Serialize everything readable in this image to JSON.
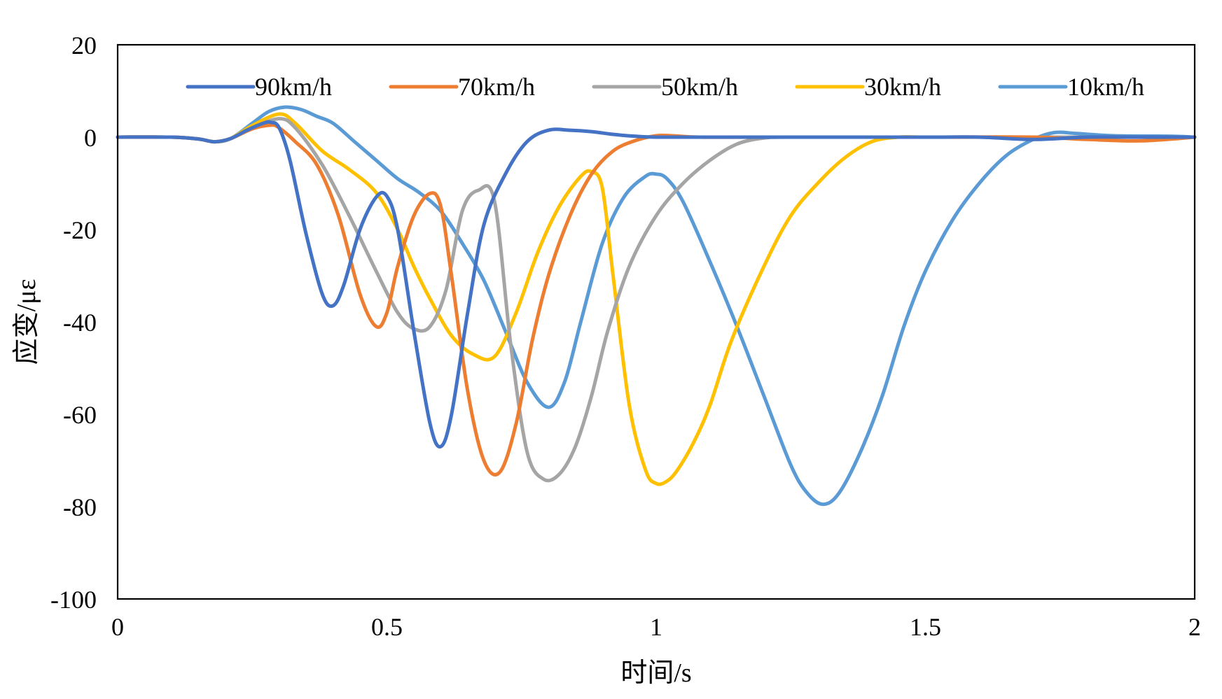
{
  "chart_data": {
    "type": "line",
    "title": "",
    "xlabel": "时间/s",
    "ylabel": "应变/με",
    "xlim": [
      0,
      2
    ],
    "ylim": [
      -100,
      20
    ],
    "xticks": [
      0,
      0.5,
      1,
      1.5,
      2
    ],
    "xtick_labels": [
      "0",
      "0.5",
      "1",
      "1.5",
      "2"
    ],
    "yticks": [
      20,
      0,
      -20,
      -40,
      -60,
      -80,
      -100
    ],
    "ytick_labels": [
      "20",
      "0",
      "-20",
      "-40",
      "-60",
      "-80",
      "-100"
    ],
    "grid": false,
    "legend_position": "top",
    "series": [
      {
        "name": "90km/h",
        "color": "#4472C4",
        "x": [
          0,
          0.1,
          0.15,
          0.18,
          0.21,
          0.24,
          0.27,
          0.285,
          0.3,
          0.32,
          0.35,
          0.38,
          0.4,
          0.42,
          0.45,
          0.48,
          0.5,
          0.52,
          0.55,
          0.58,
          0.6,
          0.62,
          0.65,
          0.68,
          0.72,
          0.76,
          0.8,
          0.84,
          0.88,
          0.92,
          0.96,
          1.0,
          1.1,
          1.3,
          1.5,
          1.6,
          1.7,
          1.8,
          1.9,
          2.0
        ],
        "y": [
          0,
          0,
          -0.4,
          -1.0,
          -0.3,
          1.5,
          3.0,
          3.2,
          2.0,
          -5.0,
          -21.0,
          -34.0,
          -36.5,
          -32.0,
          -20.0,
          -13.0,
          -12.8,
          -20.0,
          -42.0,
          -62.0,
          -67.0,
          -60.0,
          -38.0,
          -19.0,
          -8.0,
          -1.0,
          1.5,
          1.5,
          1.2,
          0.6,
          0.2,
          0,
          0,
          0,
          0,
          0,
          -0.5,
          0,
          0,
          0
        ]
      },
      {
        "name": "70km/h",
        "color": "#ED7D31",
        "x": [
          0,
          0.1,
          0.15,
          0.18,
          0.21,
          0.25,
          0.285,
          0.3,
          0.33,
          0.37,
          0.41,
          0.45,
          0.48,
          0.5,
          0.52,
          0.55,
          0.58,
          0.6,
          0.62,
          0.65,
          0.68,
          0.71,
          0.74,
          0.77,
          0.8,
          0.84,
          0.88,
          0.92,
          0.96,
          1.0,
          1.03,
          1.08,
          1.2,
          1.5,
          1.7,
          1.8,
          1.9,
          2.0
        ],
        "y": [
          0,
          0,
          -0.4,
          -1.0,
          -0.3,
          1.8,
          2.6,
          2.0,
          -1.0,
          -6.0,
          -17.0,
          -34.0,
          -41.0,
          -38.0,
          -28.0,
          -17.0,
          -12.2,
          -15.0,
          -30.0,
          -55.0,
          -70.0,
          -72.5,
          -62.0,
          -44.0,
          -30.0,
          -17.0,
          -8.0,
          -3.0,
          -0.8,
          0.3,
          0.3,
          0,
          0,
          0,
          0,
          -0.5,
          -0.8,
          0
        ]
      },
      {
        "name": "50km/h",
        "color": "#A5A5A5",
        "x": [
          0,
          0.1,
          0.15,
          0.18,
          0.21,
          0.25,
          0.3,
          0.33,
          0.38,
          0.43,
          0.48,
          0.52,
          0.55,
          0.58,
          0.61,
          0.64,
          0.67,
          0.7,
          0.73,
          0.76,
          0.79,
          0.82,
          0.85,
          0.88,
          0.91,
          0.95,
          1.0,
          1.05,
          1.1,
          1.15,
          1.2,
          1.25,
          1.4,
          1.6,
          1.8,
          2.0
        ],
        "y": [
          0,
          0,
          -0.4,
          -1.0,
          -0.3,
          2.0,
          4.0,
          2.0,
          -6.0,
          -17.0,
          -29.0,
          -38.0,
          -41.5,
          -41.0,
          -33.0,
          -16.0,
          -11.5,
          -14.0,
          -45.0,
          -68.0,
          -74.0,
          -73.0,
          -67.0,
          -56.0,
          -42.0,
          -28.0,
          -17.0,
          -10.0,
          -5.0,
          -1.5,
          -0.2,
          0,
          0,
          0,
          0,
          0
        ]
      },
      {
        "name": "30km/h",
        "color": "#FFC000",
        "x": [
          0,
          0.1,
          0.15,
          0.18,
          0.21,
          0.25,
          0.3,
          0.33,
          0.38,
          0.43,
          0.48,
          0.52,
          0.55,
          0.58,
          0.62,
          0.66,
          0.7,
          0.74,
          0.78,
          0.82,
          0.86,
          0.88,
          0.9,
          0.92,
          0.95,
          0.98,
          1.0,
          1.02,
          1.04,
          1.07,
          1.1,
          1.14,
          1.2,
          1.25,
          1.3,
          1.35,
          1.4,
          1.45,
          1.5,
          1.7,
          1.9,
          2.0
        ],
        "y": [
          0,
          0,
          -0.4,
          -1.0,
          -0.3,
          2.5,
          5.0,
          3.0,
          -3.0,
          -7.0,
          -12.0,
          -20.0,
          -28.0,
          -35.0,
          -43.0,
          -47.0,
          -47.5,
          -38.0,
          -25.0,
          -15.0,
          -8.5,
          -7.5,
          -11.0,
          -30.0,
          -58.0,
          -72.0,
          -75.0,
          -74.5,
          -72.0,
          -66.0,
          -58.0,
          -44.0,
          -28.0,
          -17.0,
          -10.0,
          -4.5,
          -1.0,
          0,
          0,
          0,
          0,
          0
        ]
      },
      {
        "name": "10km/h",
        "color": "#5B9BD5",
        "x": [
          0,
          0.1,
          0.15,
          0.18,
          0.21,
          0.25,
          0.28,
          0.31,
          0.34,
          0.37,
          0.4,
          0.44,
          0.48,
          0.52,
          0.56,
          0.6,
          0.64,
          0.68,
          0.72,
          0.76,
          0.8,
          0.83,
          0.86,
          0.9,
          0.94,
          0.98,
          1.0,
          1.02,
          1.05,
          1.1,
          1.15,
          1.2,
          1.25,
          1.28,
          1.31,
          1.34,
          1.38,
          1.42,
          1.46,
          1.5,
          1.55,
          1.6,
          1.65,
          1.7,
          1.74,
          1.78,
          1.85,
          1.95,
          2.0
        ],
        "y": [
          0,
          0,
          -0.4,
          -1.0,
          -0.3,
          3.0,
          5.5,
          6.5,
          6.0,
          4.5,
          3.0,
          -1.0,
          -5.0,
          -9.0,
          -12.0,
          -16.0,
          -23.0,
          -31.0,
          -42.0,
          -53.0,
          -58.5,
          -53.0,
          -40.0,
          -23.0,
          -13.0,
          -8.5,
          -8.0,
          -9.0,
          -14.0,
          -27.0,
          -41.0,
          -56.0,
          -71.0,
          -77.0,
          -79.5,
          -77.0,
          -68.0,
          -56.0,
          -41.0,
          -29.0,
          -18.0,
          -10.0,
          -4.0,
          -0.5,
          1.0,
          0.8,
          0.3,
          0.2,
          0
        ]
      }
    ]
  }
}
